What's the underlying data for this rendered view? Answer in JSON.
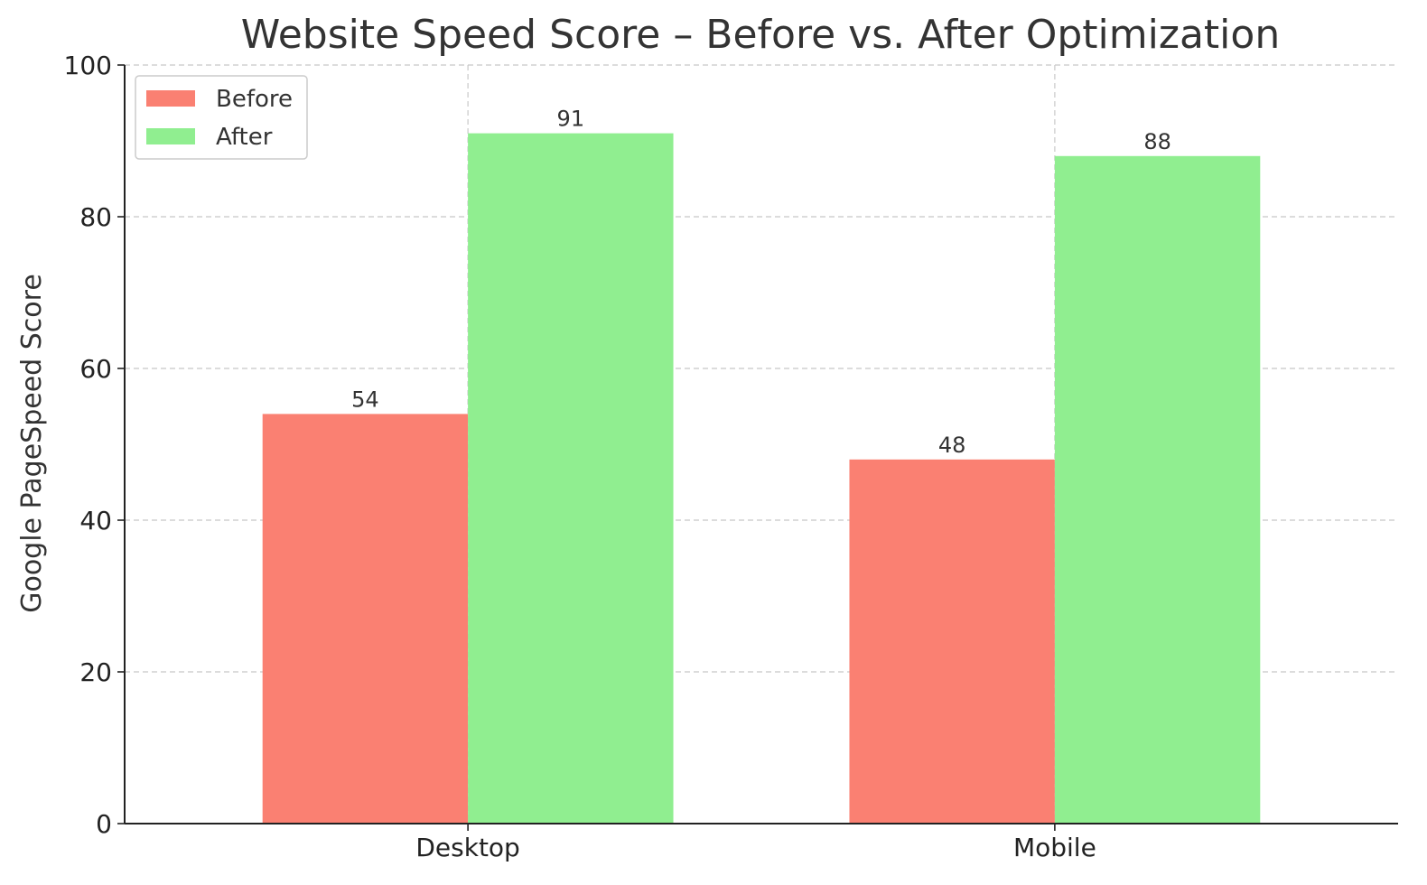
{
  "chart_data": {
    "type": "bar",
    "title": "Website Speed Score – Before vs. After Optimization",
    "xlabel": "",
    "ylabel": "Google PageSpeed Score",
    "categories": [
      "Desktop",
      "Mobile"
    ],
    "series": [
      {
        "name": "Before",
        "values": [
          54,
          48
        ],
        "color": "#fa8072"
      },
      {
        "name": "After",
        "values": [
          91,
          88
        ],
        "color": "#90ee90"
      }
    ],
    "ylim": [
      0,
      100
    ],
    "yticks": [
      0,
      20,
      40,
      60,
      80,
      100
    ],
    "grid": true,
    "legend_position": "top-left",
    "data_labels": true
  }
}
